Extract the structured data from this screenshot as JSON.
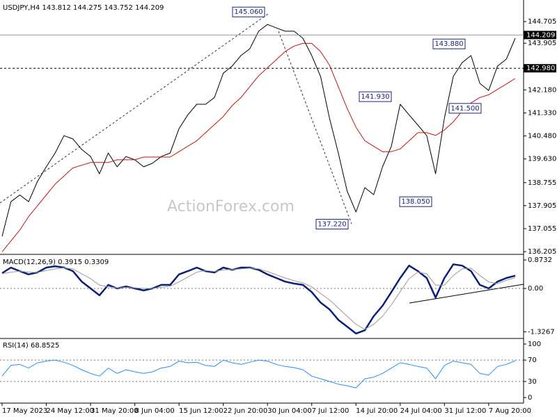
{
  "chart_data": [
    {
      "type": "line",
      "title": "USDJPY,H4  143.812 144.275 143.752 144.209",
      "watermark": "ActionForex.com",
      "xlim": [
        0,
        58
      ],
      "ylim": [
        136.13,
        145.4
      ],
      "yticks": [
        144.705,
        143.905,
        {
          "value": 142.18,
          "label": "142.180"
        },
        {
          "value": 141.33,
          "label": "141.330"
        },
        {
          "value": 140.48,
          "label": "140.480"
        },
        {
          "value": 139.63,
          "label": "139.630"
        },
        138.755,
        137.905,
        137.055,
        136.205
      ],
      "series": [
        {
          "color": "#000000",
          "width": 1,
          "values": [
            136.77,
            138.05,
            138.3,
            138.05,
            138.8,
            139.34,
            139.85,
            140.49,
            140.37,
            139.98,
            139.72,
            139.08,
            139.85,
            139.34,
            139.72,
            139.6,
            139.34,
            139.47,
            139.72,
            139.85,
            140.75,
            141.26,
            141.65,
            141.65,
            141.9,
            142.8,
            143.06,
            143.45,
            143.7,
            144.35,
            144.6,
            144.47,
            144.35,
            144.35,
            144.09,
            143.45,
            142.68,
            141.14,
            139.85,
            138.44,
            137.67,
            138.57,
            138.31,
            139.34,
            140.1,
            141.65,
            141.26,
            140.88,
            140.49,
            139.08,
            141.14,
            142.68,
            143.19,
            143.45,
            142.42,
            142.16,
            143.06,
            143.32,
            144.09
          ]
        },
        {
          "color": "#cc1111",
          "width": 1,
          "values": [
            136.2,
            136.6,
            137.0,
            137.5,
            137.9,
            138.3,
            138.7,
            139.0,
            139.3,
            139.4,
            139.5,
            139.5,
            139.5,
            139.6,
            139.6,
            139.6,
            139.7,
            139.7,
            139.7,
            139.7,
            139.9,
            140.1,
            140.3,
            140.6,
            140.9,
            141.2,
            141.6,
            141.9,
            142.3,
            142.7,
            143.0,
            143.3,
            143.6,
            143.8,
            143.9,
            143.9,
            143.6,
            143.1,
            142.3,
            141.5,
            140.8,
            140.3,
            140.1,
            139.9,
            139.9,
            140.0,
            140.3,
            140.6,
            140.6,
            140.5,
            140.7,
            141.0,
            141.4,
            141.7,
            141.9,
            142.0,
            142.2,
            142.4,
            142.6
          ]
        }
      ],
      "hlines": [
        {
          "value": 144.209,
          "label": "144.209",
          "style": "solid"
        },
        {
          "value": 142.98,
          "label": "142.980",
          "style": "dashed"
        }
      ],
      "annotations": [
        {
          "value": 145.06,
          "label": "145.060"
        },
        {
          "value": 137.22,
          "label": "137.220"
        },
        {
          "value": 141.93,
          "label": "141.930"
        },
        {
          "value": 138.05,
          "label": "138.050"
        },
        {
          "value": 143.88,
          "label": "143.880"
        },
        {
          "value": 141.5,
          "label": "141.500"
        }
      ]
    },
    {
      "type": "line",
      "title": "MACD(12,26,9) 0.3915 0.3309",
      "xlim": [
        0,
        58
      ],
      "ylim": [
        -1.51,
        0.98
      ],
      "yticks": [
        0.8732,
        {
          "value": 0,
          "label": "0.00"
        },
        -1.3267
      ],
      "levels": [
        0
      ],
      "series": [
        {
          "color": "#0b1f7a",
          "width": 2.5,
          "values": [
            0.47,
            0.64,
            0.53,
            0.43,
            0.49,
            0.64,
            0.68,
            0.64,
            0.53,
            0.21,
            0,
            -0.21,
            0.11,
            0,
            0.06,
            0,
            -0.06,
            0,
            0.11,
            0.11,
            0.43,
            0.53,
            0.64,
            0.53,
            0.49,
            0.64,
            0.57,
            0.64,
            0.64,
            0.57,
            0.43,
            0.32,
            0.21,
            0.15,
            0.11,
            -0.11,
            -0.43,
            -0.64,
            -0.96,
            -1.17,
            -1.38,
            -1.28,
            -0.85,
            -0.53,
            -0.11,
            0.32,
            0.7,
            0.53,
            0.32,
            -0.28,
            0.32,
            0.74,
            0.7,
            0.53,
            0.11,
            0,
            0.21,
            0.32,
            0.39
          ]
        },
        {
          "color": "#999999",
          "width": 1,
          "values": [
            0.45,
            0.5,
            0.53,
            0.5,
            0.49,
            0.55,
            0.6,
            0.63,
            0.6,
            0.45,
            0.3,
            0.1,
            0.05,
            0.02,
            0.03,
            0.02,
            0,
            0,
            0.04,
            0.07,
            0.2,
            0.35,
            0.5,
            0.55,
            0.52,
            0.57,
            0.58,
            0.6,
            0.62,
            0.6,
            0.52,
            0.42,
            0.32,
            0.24,
            0.17,
            0.05,
            -0.15,
            -0.35,
            -0.6,
            -0.85,
            -1.1,
            -1.25,
            -1.1,
            -0.85,
            -0.5,
            -0.1,
            0.3,
            0.5,
            0.45,
            0.1,
            0.1,
            0.4,
            0.6,
            0.62,
            0.4,
            0.2,
            0.15,
            0.25,
            0.33
          ]
        }
      ]
    },
    {
      "type": "line",
      "title": "RSI(14) 68.8525",
      "xlim": [
        0,
        58
      ],
      "ylim": [
        -9.1,
        106.5
      ],
      "yticks": [
        100,
        70,
        30,
        0
      ],
      "levels": [
        70,
        30
      ],
      "series": [
        {
          "color": "#1e90ff",
          "width": 1,
          "values": [
            40,
            60,
            62,
            55,
            65,
            68,
            70,
            66,
            60,
            52,
            45,
            40,
            55,
            45,
            52,
            48,
            45,
            48,
            55,
            58,
            68,
            65,
            66,
            60,
            58,
            70,
            65,
            62,
            66,
            70,
            68,
            62,
            58,
            56,
            52,
            40,
            35,
            30,
            25,
            22,
            18,
            35,
            38,
            45,
            55,
            65,
            62,
            58,
            55,
            35,
            60,
            68,
            65,
            62,
            45,
            42,
            58,
            62,
            68.85
          ]
        }
      ],
      "xticks": [
        {
          "value": 0,
          "label": "17 May 2023"
        },
        {
          "value": 5,
          "label": "24 May 12:00"
        },
        {
          "value": 10,
          "label": "31 May 20:00"
        },
        {
          "value": 15,
          "label": "8 Jun 04:00"
        },
        {
          "value": 20,
          "label": "15 Jun 12:00"
        },
        {
          "value": 25,
          "label": "22 Jun 20:00"
        },
        {
          "value": 30,
          "label": "30 Jun 04:00"
        },
        {
          "value": 35,
          "label": "7 Jul 12:00"
        },
        {
          "value": 40,
          "label": "14 Jul 20:00"
        },
        {
          "value": 45,
          "label": "24 Jul 04:00"
        },
        {
          "value": 50,
          "label": "31 Jul 12:00"
        },
        {
          "value": 55,
          "label": "7 Aug 20:00"
        }
      ]
    }
  ]
}
